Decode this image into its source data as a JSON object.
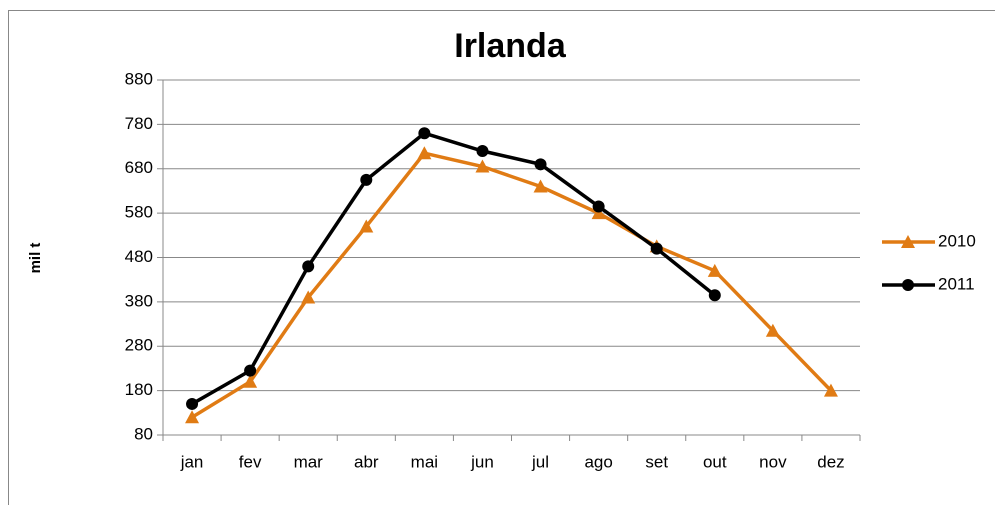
{
  "chart_data": {
    "type": "line",
    "title": "Irlanda",
    "y_label": "mil t",
    "categories": [
      "jan",
      "fev",
      "mar",
      "abr",
      "mai",
      "jun",
      "jul",
      "ago",
      "set",
      "out",
      "nov",
      "dez"
    ],
    "series": [
      {
        "name": "2010",
        "color": "#e07b14",
        "marker": "triangle",
        "values": [
          120,
          200,
          390,
          550,
          715,
          685,
          640,
          580,
          505,
          450,
          315,
          180
        ]
      },
      {
        "name": "2011",
        "color": "#000000",
        "marker": "circle",
        "values": [
          150,
          225,
          460,
          655,
          760,
          720,
          690,
          595,
          500,
          395,
          null,
          null
        ]
      }
    ],
    "ylim": [
      80,
      880
    ],
    "yticks": [
      80,
      180,
      280,
      380,
      480,
      580,
      680,
      780,
      880
    ],
    "grid": true,
    "legend": "right"
  }
}
